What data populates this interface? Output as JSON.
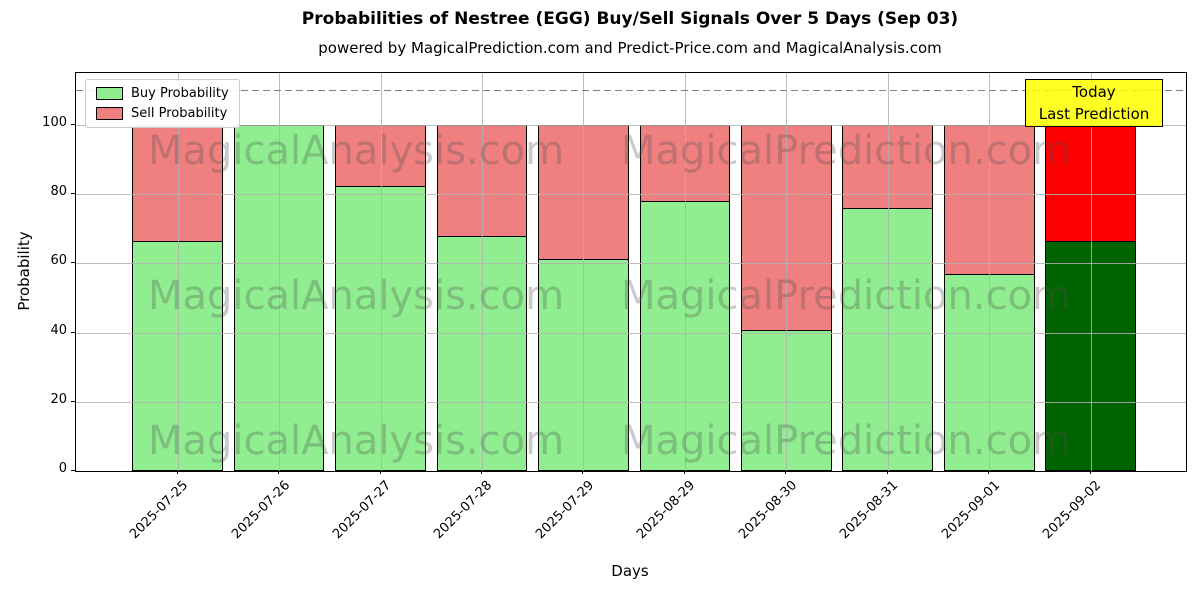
{
  "title": "Probabilities of Nestree (EGG) Buy/Sell Signals Over 5 Days (Sep 03)",
  "subtitle": "powered by MagicalPrediction.com and Predict-Price.com and MagicalAnalysis.com",
  "chart_data": {
    "type": "bar",
    "stacked": true,
    "categories": [
      "2025-07-25",
      "2025-07-26",
      "2025-07-27",
      "2025-07-28",
      "2025-07-29",
      "2025-08-29",
      "2025-08-30",
      "2025-08-31",
      "2025-09-01",
      "2025-09-02"
    ],
    "series": [
      {
        "name": "Buy Probability",
        "values": [
          66.5,
          100,
          82.5,
          68,
          61.5,
          78,
          41,
          76,
          57,
          66.5
        ],
        "color": "#90EE90",
        "today_color": "#006400"
      },
      {
        "name": "Sell Probability",
        "values": [
          33.5,
          0,
          17.5,
          32,
          38.5,
          22,
          59,
          24,
          43,
          33.5
        ],
        "color": "#F08080",
        "today_color": "#FF0000"
      }
    ],
    "today_index": 9,
    "xlabel": "Days",
    "ylabel": "Probability",
    "ylim": [
      0,
      115
    ],
    "yticks": [
      0,
      20,
      40,
      60,
      80,
      100
    ],
    "dashed_line_y": 110,
    "grid": true,
    "legend_position": "upper-left"
  },
  "annotation": {
    "line1": "Today",
    "line2": "Last Prediction",
    "bg_color": "#FFFF00"
  },
  "watermarks": {
    "left_text": "MagicalAnalysis.com",
    "right_text": "MagicalPrediction.com"
  }
}
